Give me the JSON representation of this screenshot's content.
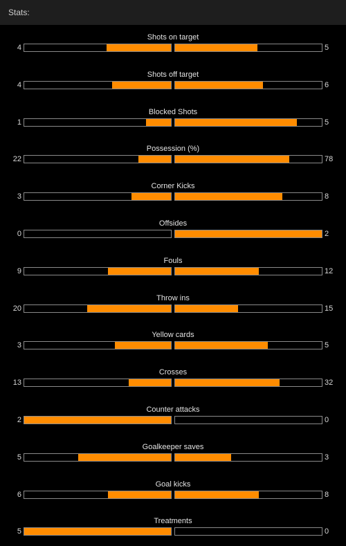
{
  "header": {
    "title": "Stats:"
  },
  "colors": {
    "fill": "#ff8c00",
    "background": "#000000",
    "header_bg": "#1e1e1e"
  },
  "stats": [
    {
      "label": "Shots on target",
      "home": "4",
      "away": "5",
      "home_fill": 0.44,
      "away_fill": 0.56
    },
    {
      "label": "Shots off target",
      "home": "4",
      "away": "6",
      "home_fill": 0.4,
      "away_fill": 0.6
    },
    {
      "label": "Blocked Shots",
      "home": "1",
      "away": "5",
      "home_fill": 0.17,
      "away_fill": 0.83
    },
    {
      "label": "Possession (%)",
      "home": "22",
      "away": "78",
      "home_fill": 0.22,
      "away_fill": 0.78
    },
    {
      "label": "Corner Kicks",
      "home": "3",
      "away": "8",
      "home_fill": 0.27,
      "away_fill": 0.73
    },
    {
      "label": "Offsides",
      "home": "0",
      "away": "2",
      "home_fill": 0.0,
      "away_fill": 1.0
    },
    {
      "label": "Fouls",
      "home": "9",
      "away": "12",
      "home_fill": 0.43,
      "away_fill": 0.57
    },
    {
      "label": "Throw ins",
      "home": "20",
      "away": "15",
      "home_fill": 0.57,
      "away_fill": 0.43
    },
    {
      "label": "Yellow cards",
      "home": "3",
      "away": "5",
      "home_fill": 0.38,
      "away_fill": 0.63
    },
    {
      "label": "Crosses",
      "home": "13",
      "away": "32",
      "home_fill": 0.29,
      "away_fill": 0.71
    },
    {
      "label": "Counter attacks",
      "home": "2",
      "away": "0",
      "home_fill": 1.0,
      "away_fill": 0.0
    },
    {
      "label": "Goalkeeper saves",
      "home": "5",
      "away": "3",
      "home_fill": 0.63,
      "away_fill": 0.38
    },
    {
      "label": "Goal kicks",
      "home": "6",
      "away": "8",
      "home_fill": 0.43,
      "away_fill": 0.57
    },
    {
      "label": "Treatments",
      "home": "5",
      "away": "0",
      "home_fill": 1.0,
      "away_fill": 0.0
    }
  ]
}
